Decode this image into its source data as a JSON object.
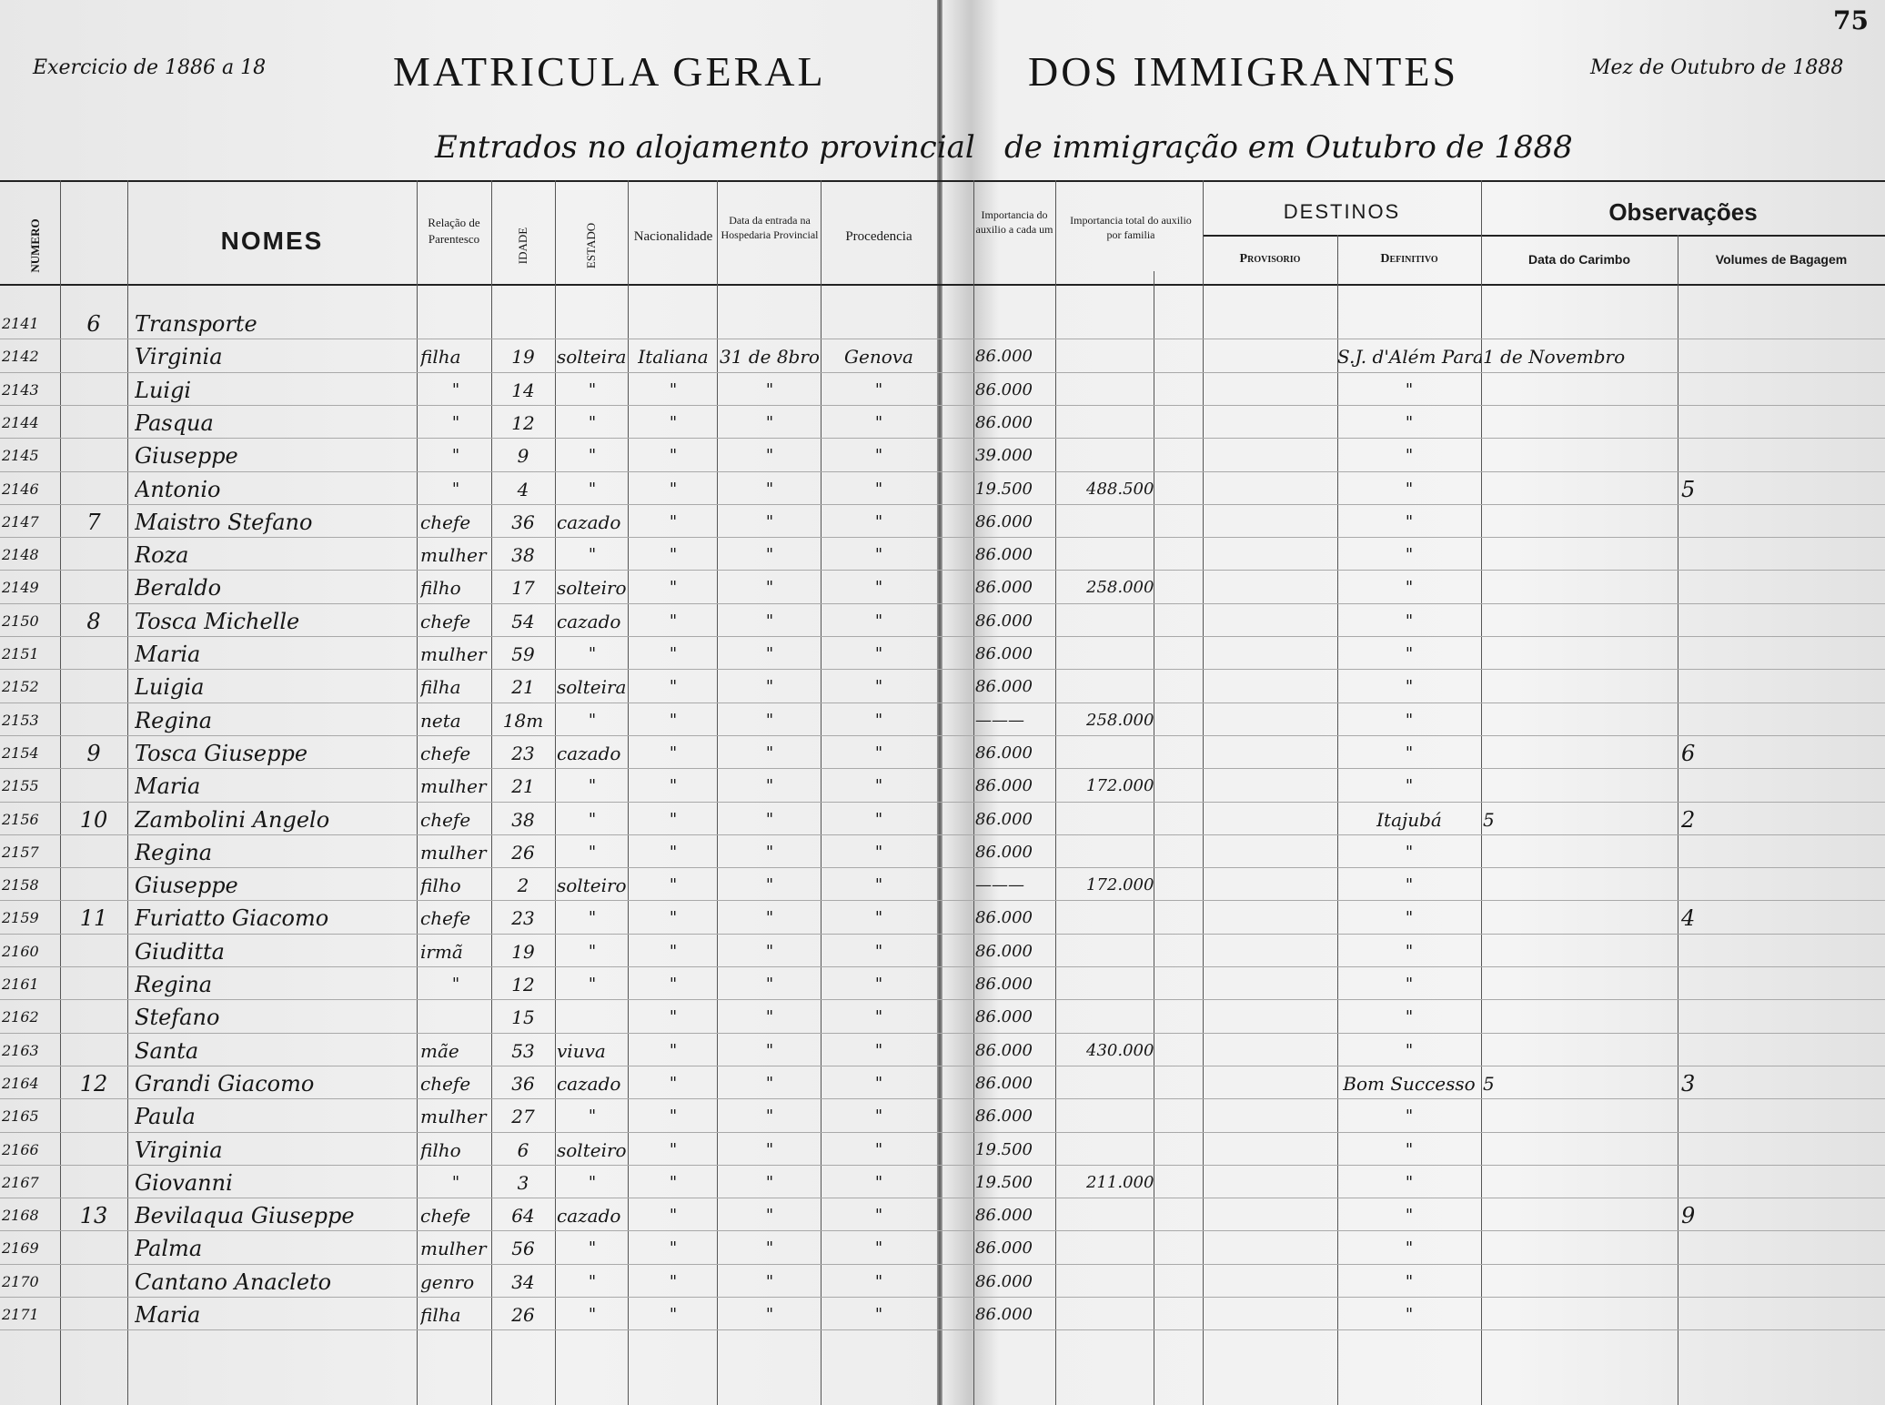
{
  "page_number": "75",
  "header": {
    "exercicio": "Exercicio de 1886 a 18",
    "title_left": "MATRICULA GERAL",
    "title_right": "DOS IMMIGRANTES",
    "mez": "Mez de Outubro de 1888",
    "subtitle_left": "Entrados no alojamento provincial",
    "subtitle_right": "de immigração em Outubro de 1888"
  },
  "columns": {
    "numero": "NUMERO",
    "nomes": "NOMES",
    "relacao": "Relação de Parentesco",
    "idade": "IDADE",
    "estado": "ESTADO",
    "nacionalidade": "Nacionalidade",
    "data_entrada": "Data da entrada na Hospedaria Provincial",
    "procedencia": "Procedencia",
    "auxilio_cada": "Importancia do auxilio a cada um",
    "auxilio_familia": "Importancia total do auxilio por familia",
    "destinos": "DESTINOS",
    "provisorio": "Provisorio",
    "definitivo": "Definitivo",
    "observacoes": "Observações",
    "data_carimbo": "Data do Carimbo",
    "volumes": "Volumes de Bagagem"
  },
  "rows": [
    {
      "numero": "2141",
      "familia": "6",
      "nome": "Transporte",
      "relacao": "",
      "idade": "",
      "estado": "",
      "nacionalidade": "",
      "data": "",
      "procedencia": "",
      "aux_cada": "",
      "aux_familia": "",
      "definitivo": "",
      "carimbo": "",
      "volumes": ""
    },
    {
      "numero": "2142",
      "familia": "",
      "nome": "Virginia",
      "relacao": "filha",
      "idade": "19",
      "estado": "solteira",
      "nacionalidade": "Italiana",
      "data": "31 de 8bro",
      "procedencia": "Genova",
      "aux_cada": "86.000",
      "aux_familia": "",
      "definitivo": "S.J. d'Além Parahyba",
      "carimbo": "1 de Novembro",
      "volumes": ""
    },
    {
      "numero": "2143",
      "familia": "",
      "nome": "Luigi",
      "relacao": "\"",
      "idade": "14",
      "estado": "\"",
      "nacionalidade": "\"",
      "data": "\"",
      "procedencia": "\"",
      "aux_cada": "86.000",
      "aux_familia": "",
      "definitivo": "\"",
      "carimbo": "",
      "volumes": ""
    },
    {
      "numero": "2144",
      "familia": "",
      "nome": "Pasqua",
      "relacao": "\"",
      "idade": "12",
      "estado": "\"",
      "nacionalidade": "\"",
      "data": "\"",
      "procedencia": "\"",
      "aux_cada": "86.000",
      "aux_familia": "",
      "definitivo": "\"",
      "carimbo": "",
      "volumes": ""
    },
    {
      "numero": "2145",
      "familia": "",
      "nome": "Giuseppe",
      "relacao": "\"",
      "idade": "9",
      "estado": "\"",
      "nacionalidade": "\"",
      "data": "\"",
      "procedencia": "\"",
      "aux_cada": "39.000",
      "aux_familia": "",
      "definitivo": "\"",
      "carimbo": "",
      "volumes": ""
    },
    {
      "numero": "2146",
      "familia": "",
      "nome": "Antonio",
      "relacao": "\"",
      "idade": "4",
      "estado": "\"",
      "nacionalidade": "\"",
      "data": "\"",
      "procedencia": "\"",
      "aux_cada": "19.500",
      "aux_familia": "488.500",
      "definitivo": "\"",
      "carimbo": "",
      "volumes": "5"
    },
    {
      "numero": "2147",
      "familia": "7",
      "nome": "Maistro Stefano",
      "relacao": "chefe",
      "idade": "36",
      "estado": "cazado",
      "nacionalidade": "\"",
      "data": "\"",
      "procedencia": "\"",
      "aux_cada": "86.000",
      "aux_familia": "",
      "definitivo": "\"",
      "carimbo": "",
      "volumes": ""
    },
    {
      "numero": "2148",
      "familia": "",
      "nome": "Roza",
      "relacao": "mulher",
      "idade": "38",
      "estado": "\"",
      "nacionalidade": "\"",
      "data": "\"",
      "procedencia": "\"",
      "aux_cada": "86.000",
      "aux_familia": "",
      "definitivo": "\"",
      "carimbo": "",
      "volumes": ""
    },
    {
      "numero": "2149",
      "familia": "",
      "nome": "Beraldo",
      "relacao": "filho",
      "idade": "17",
      "estado": "solteiro",
      "nacionalidade": "\"",
      "data": "\"",
      "procedencia": "\"",
      "aux_cada": "86.000",
      "aux_familia": "258.000",
      "definitivo": "\"",
      "carimbo": "",
      "volumes": ""
    },
    {
      "numero": "2150",
      "familia": "8",
      "nome": "Tosca Michelle",
      "relacao": "chefe",
      "idade": "54",
      "estado": "cazado",
      "nacionalidade": "\"",
      "data": "\"",
      "procedencia": "\"",
      "aux_cada": "86.000",
      "aux_familia": "",
      "definitivo": "\"",
      "carimbo": "",
      "volumes": ""
    },
    {
      "numero": "2151",
      "familia": "",
      "nome": "Maria",
      "relacao": "mulher",
      "idade": "59",
      "estado": "\"",
      "nacionalidade": "\"",
      "data": "\"",
      "procedencia": "\"",
      "aux_cada": "86.000",
      "aux_familia": "",
      "definitivo": "\"",
      "carimbo": "",
      "volumes": ""
    },
    {
      "numero": "2152",
      "familia": "",
      "nome": "Luigia",
      "relacao": "filha",
      "idade": "21",
      "estado": "solteira",
      "nacionalidade": "\"",
      "data": "\"",
      "procedencia": "\"",
      "aux_cada": "86.000",
      "aux_familia": "",
      "definitivo": "\"",
      "carimbo": "",
      "volumes": ""
    },
    {
      "numero": "2153",
      "familia": "",
      "nome": "Regina",
      "relacao": "neta",
      "idade": "18m",
      "estado": "\"",
      "nacionalidade": "\"",
      "data": "\"",
      "procedencia": "\"",
      "aux_cada": "———",
      "aux_familia": "258.000",
      "definitivo": "\"",
      "carimbo": "",
      "volumes": ""
    },
    {
      "numero": "2154",
      "familia": "9",
      "nome": "Tosca Giuseppe",
      "relacao": "chefe",
      "idade": "23",
      "estado": "cazado",
      "nacionalidade": "\"",
      "data": "\"",
      "procedencia": "\"",
      "aux_cada": "86.000",
      "aux_familia": "",
      "definitivo": "\"",
      "carimbo": "",
      "volumes": "6"
    },
    {
      "numero": "2155",
      "familia": "",
      "nome": "Maria",
      "relacao": "mulher",
      "idade": "21",
      "estado": "\"",
      "nacionalidade": "\"",
      "data": "\"",
      "procedencia": "\"",
      "aux_cada": "86.000",
      "aux_familia": "172.000",
      "definitivo": "\"",
      "carimbo": "",
      "volumes": ""
    },
    {
      "numero": "2156",
      "familia": "10",
      "nome": "Zambolini Angelo",
      "relacao": "chefe",
      "idade": "38",
      "estado": "\"",
      "nacionalidade": "\"",
      "data": "\"",
      "procedencia": "\"",
      "aux_cada": "86.000",
      "aux_familia": "",
      "definitivo": "Itajubá",
      "carimbo": "5",
      "volumes": "2"
    },
    {
      "numero": "2157",
      "familia": "",
      "nome": "Regina",
      "relacao": "mulher",
      "idade": "26",
      "estado": "\"",
      "nacionalidade": "\"",
      "data": "\"",
      "procedencia": "\"",
      "aux_cada": "86.000",
      "aux_familia": "",
      "definitivo": "\"",
      "carimbo": "",
      "volumes": ""
    },
    {
      "numero": "2158",
      "familia": "",
      "nome": "Giuseppe",
      "relacao": "filho",
      "idade": "2",
      "estado": "solteiro",
      "nacionalidade": "\"",
      "data": "\"",
      "procedencia": "\"",
      "aux_cada": "———",
      "aux_familia": "172.000",
      "definitivo": "\"",
      "carimbo": "",
      "volumes": ""
    },
    {
      "numero": "2159",
      "familia": "11",
      "nome": "Furiatto Giacomo",
      "relacao": "chefe",
      "idade": "23",
      "estado": "\"",
      "nacionalidade": "\"",
      "data": "\"",
      "procedencia": "\"",
      "aux_cada": "86.000",
      "aux_familia": "",
      "definitivo": "\"",
      "carimbo": "",
      "volumes": "4"
    },
    {
      "numero": "2160",
      "familia": "",
      "nome": "Giuditta",
      "relacao": "irmã",
      "idade": "19",
      "estado": "\"",
      "nacionalidade": "\"",
      "data": "\"",
      "procedencia": "\"",
      "aux_cada": "86.000",
      "aux_familia": "",
      "definitivo": "\"",
      "carimbo": "",
      "volumes": ""
    },
    {
      "numero": "2161",
      "familia": "",
      "nome": "Regina",
      "relacao": "\"",
      "idade": "12",
      "estado": "\"",
      "nacionalidade": "\"",
      "data": "\"",
      "procedencia": "\"",
      "aux_cada": "86.000",
      "aux_familia": "",
      "definitivo": "\"",
      "carimbo": "",
      "volumes": ""
    },
    {
      "numero": "2162",
      "familia": "",
      "nome": "Stefano",
      "relacao": "",
      "idade": "15",
      "estado": "",
      "nacionalidade": "\"",
      "data": "\"",
      "procedencia": "\"",
      "aux_cada": "86.000",
      "aux_familia": "",
      "definitivo": "\"",
      "carimbo": "",
      "volumes": ""
    },
    {
      "numero": "2163",
      "familia": "",
      "nome": "Santa",
      "relacao": "mãe",
      "idade": "53",
      "estado": "viuva",
      "nacionalidade": "\"",
      "data": "\"",
      "procedencia": "\"",
      "aux_cada": "86.000",
      "aux_familia": "430.000",
      "definitivo": "\"",
      "carimbo": "",
      "volumes": ""
    },
    {
      "numero": "2164",
      "familia": "12",
      "nome": "Grandi Giacomo",
      "relacao": "chefe",
      "idade": "36",
      "estado": "cazado",
      "nacionalidade": "\"",
      "data": "\"",
      "procedencia": "\"",
      "aux_cada": "86.000",
      "aux_familia": "",
      "definitivo": "Bom Successo",
      "carimbo": "5",
      "volumes": "3"
    },
    {
      "numero": "2165",
      "familia": "",
      "nome": "Paula",
      "relacao": "mulher",
      "idade": "27",
      "estado": "\"",
      "nacionalidade": "\"",
      "data": "\"",
      "procedencia": "\"",
      "aux_cada": "86.000",
      "aux_familia": "",
      "definitivo": "\"",
      "carimbo": "",
      "volumes": ""
    },
    {
      "numero": "2166",
      "familia": "",
      "nome": "Virginia",
      "relacao": "filho",
      "idade": "6",
      "estado": "solteiro",
      "nacionalidade": "\"",
      "data": "\"",
      "procedencia": "\"",
      "aux_cada": "19.500",
      "aux_familia": "",
      "definitivo": "\"",
      "carimbo": "",
      "volumes": ""
    },
    {
      "numero": "2167",
      "familia": "",
      "nome": "Giovanni",
      "relacao": "\"",
      "idade": "3",
      "estado": "\"",
      "nacionalidade": "\"",
      "data": "\"",
      "procedencia": "\"",
      "aux_cada": "19.500",
      "aux_familia": "211.000",
      "definitivo": "\"",
      "carimbo": "",
      "volumes": ""
    },
    {
      "numero": "2168",
      "familia": "13",
      "nome": "Bevilaqua Giuseppe",
      "relacao": "chefe",
      "idade": "64",
      "estado": "cazado",
      "nacionalidade": "\"",
      "data": "\"",
      "procedencia": "\"",
      "aux_cada": "86.000",
      "aux_familia": "",
      "definitivo": "\"",
      "carimbo": "",
      "volumes": "9"
    },
    {
      "numero": "2169",
      "familia": "",
      "nome": "Palma",
      "relacao": "mulher",
      "idade": "56",
      "estado": "\"",
      "nacionalidade": "\"",
      "data": "\"",
      "procedencia": "\"",
      "aux_cada": "86.000",
      "aux_familia": "",
      "definitivo": "\"",
      "carimbo": "",
      "volumes": ""
    },
    {
      "numero": "2170",
      "familia": "",
      "nome": "Cantano Anacleto",
      "relacao": "genro",
      "idade": "34",
      "estado": "\"",
      "nacionalidade": "\"",
      "data": "\"",
      "procedencia": "\"",
      "aux_cada": "86.000",
      "aux_familia": "",
      "definitivo": "\"",
      "carimbo": "",
      "volumes": ""
    },
    {
      "numero": "2171",
      "familia": "",
      "nome": "Maria",
      "relacao": "filha",
      "idade": "26",
      "estado": "\"",
      "nacionalidade": "\"",
      "data": "\"",
      "procedencia": "\"",
      "aux_cada": "86.000",
      "aux_familia": "",
      "definitivo": "\"",
      "carimbo": "",
      "volumes": ""
    }
  ]
}
